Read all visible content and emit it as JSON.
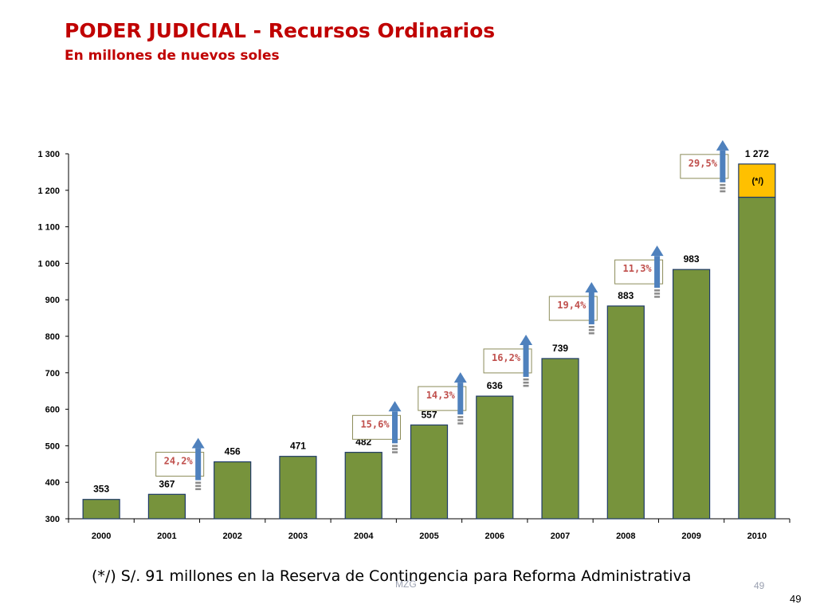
{
  "header": {
    "title": "PODER JUDICIAL - Recursos Ordinarios",
    "subtitle": "En millones de nuevos soles"
  },
  "chart_data": {
    "type": "bar",
    "title": "",
    "xlabel": "",
    "ylabel": "",
    "categories": [
      "2000",
      "2001",
      "2002",
      "2003",
      "2004",
      "2005",
      "2006",
      "2007",
      "2008",
      "2009",
      "2010"
    ],
    "values": [
      353,
      367,
      456,
      471,
      482,
      557,
      636,
      739,
      883,
      983,
      1272
    ],
    "value_labels": [
      "353",
      "367",
      "456",
      "471",
      "482",
      "557",
      "636",
      "739",
      "883",
      "983",
      "1 272"
    ],
    "ylim": [
      300,
      1300
    ],
    "yticks": [
      300,
      400,
      500,
      600,
      700,
      800,
      900,
      1000,
      1100,
      1200,
      1300
    ],
    "ytick_labels": [
      "300",
      "400",
      "500",
      "600",
      "700",
      "800",
      "900",
      "1 000",
      "1 100",
      "1 200",
      "1 300"
    ],
    "grid": false,
    "bar_color": "#77933c",
    "highlight": {
      "category": "2010",
      "amount": 91,
      "label": "(*/)",
      "color": "#ffc000"
    },
    "growth_annotations": [
      {
        "category": "2002",
        "label": "24,2%"
      },
      {
        "category": "2005",
        "label": "15,6%"
      },
      {
        "category": "2006",
        "label": "14,3%"
      },
      {
        "category": "2007",
        "label": "16,2%"
      },
      {
        "category": "2008",
        "label": "19,4%"
      },
      {
        "category": "2009",
        "label": "11,3%"
      },
      {
        "category": "2010",
        "label": "29,5%"
      }
    ],
    "annotation_color": "#c0504d",
    "arrow_color": "#4f81bd"
  },
  "footer": {
    "note": "(*/) S/. 91 millones en la Reserva de Contingencia para Reforma Administrativa",
    "watermark": "MZG",
    "slide_number_faint": "49",
    "slide_number": "49"
  }
}
